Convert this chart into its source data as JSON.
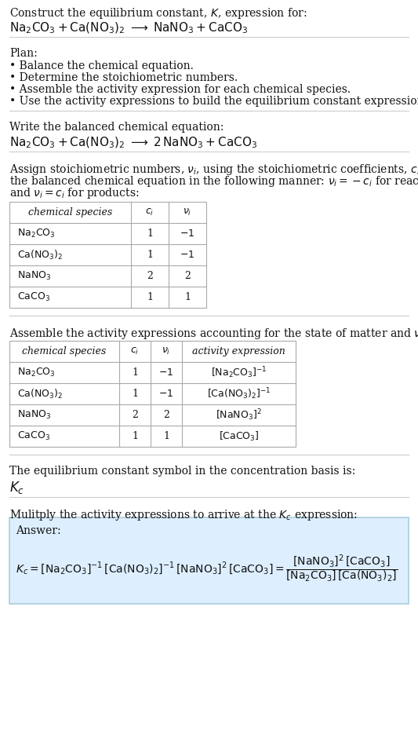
{
  "bg_color": "#ffffff",
  "title_line1": "Construct the equilibrium constant, $K$, expression for:",
  "title_line2": "$\\mathrm{Na_2CO_3 + Ca(NO_3)_2 \\;\\longrightarrow\\; NaNO_3 + CaCO_3}$",
  "plan_header": "Plan:",
  "plan_bullets": [
    "• Balance the chemical equation.",
    "• Determine the stoichiometric numbers.",
    "• Assemble the activity expression for each chemical species.",
    "• Use the activity expressions to build the equilibrium constant expression."
  ],
  "balanced_header": "Write the balanced chemical equation:",
  "balanced_eq": "$\\mathrm{Na_2CO_3 + Ca(NO_3)_2 \\;\\longrightarrow\\; 2\\,NaNO_3 + CaCO_3}$",
  "stoich_para": [
    "Assign stoichiometric numbers, $\\nu_i$, using the stoichiometric coefficients, $c_i$, from",
    "the balanced chemical equation in the following manner: $\\nu_i = -c_i$ for reactants",
    "and $\\nu_i = c_i$ for products:"
  ],
  "table1_headers": [
    "chemical species",
    "$c_i$",
    "$\\nu_i$"
  ],
  "table1_rows": [
    [
      "$\\mathrm{Na_2CO_3}$",
      "1",
      "$-1$"
    ],
    [
      "$\\mathrm{Ca(NO_3)_2}$",
      "1",
      "$-1$"
    ],
    [
      "$\\mathrm{NaNO_3}$",
      "2",
      "2"
    ],
    [
      "$\\mathrm{CaCO_3}$",
      "1",
      "1"
    ]
  ],
  "activity_header": "Assemble the activity expressions accounting for the state of matter and $\\nu_i$:",
  "table2_headers": [
    "chemical species",
    "$c_i$",
    "$\\nu_i$",
    "activity expression"
  ],
  "table2_rows": [
    [
      "$\\mathrm{Na_2CO_3}$",
      "1",
      "$-1$",
      "$[\\mathrm{Na_2CO_3}]^{-1}$"
    ],
    [
      "$\\mathrm{Ca(NO_3)_2}$",
      "1",
      "$-1$",
      "$[\\mathrm{Ca(NO_3)_2}]^{-1}$"
    ],
    [
      "$\\mathrm{NaNO_3}$",
      "2",
      "2",
      "$[\\mathrm{NaNO_3}]^{2}$"
    ],
    [
      "$\\mathrm{CaCO_3}$",
      "1",
      "1",
      "$[\\mathrm{CaCO_3}]$"
    ]
  ],
  "kc_header": "The equilibrium constant symbol in the concentration basis is:",
  "kc_symbol": "$K_c$",
  "multiply_header": "Mulitply the activity expressions to arrive at the $K_c$ expression:",
  "answer_label": "Answer:",
  "answer_box_color": "#ddeeff",
  "answer_box_border": "#aaccdd",
  "answer_eq": "$K_c = [\\mathrm{Na_2CO_3}]^{-1}\\,[\\mathrm{Ca(NO_3)_2}]^{-1}\\,[\\mathrm{NaNO_3}]^{2}\\,[\\mathrm{CaCO_3}] = \\dfrac{[\\mathrm{NaNO_3}]^{2}\\,[\\mathrm{CaCO_3}]}{[\\mathrm{Na_2CO_3}]\\,[\\mathrm{Ca(NO_3)_2}]}$",
  "sep_color": "#cccccc",
  "table_border": "#aaaaaa",
  "fs": 10,
  "fs_eq": 11,
  "text_color": "#111111"
}
